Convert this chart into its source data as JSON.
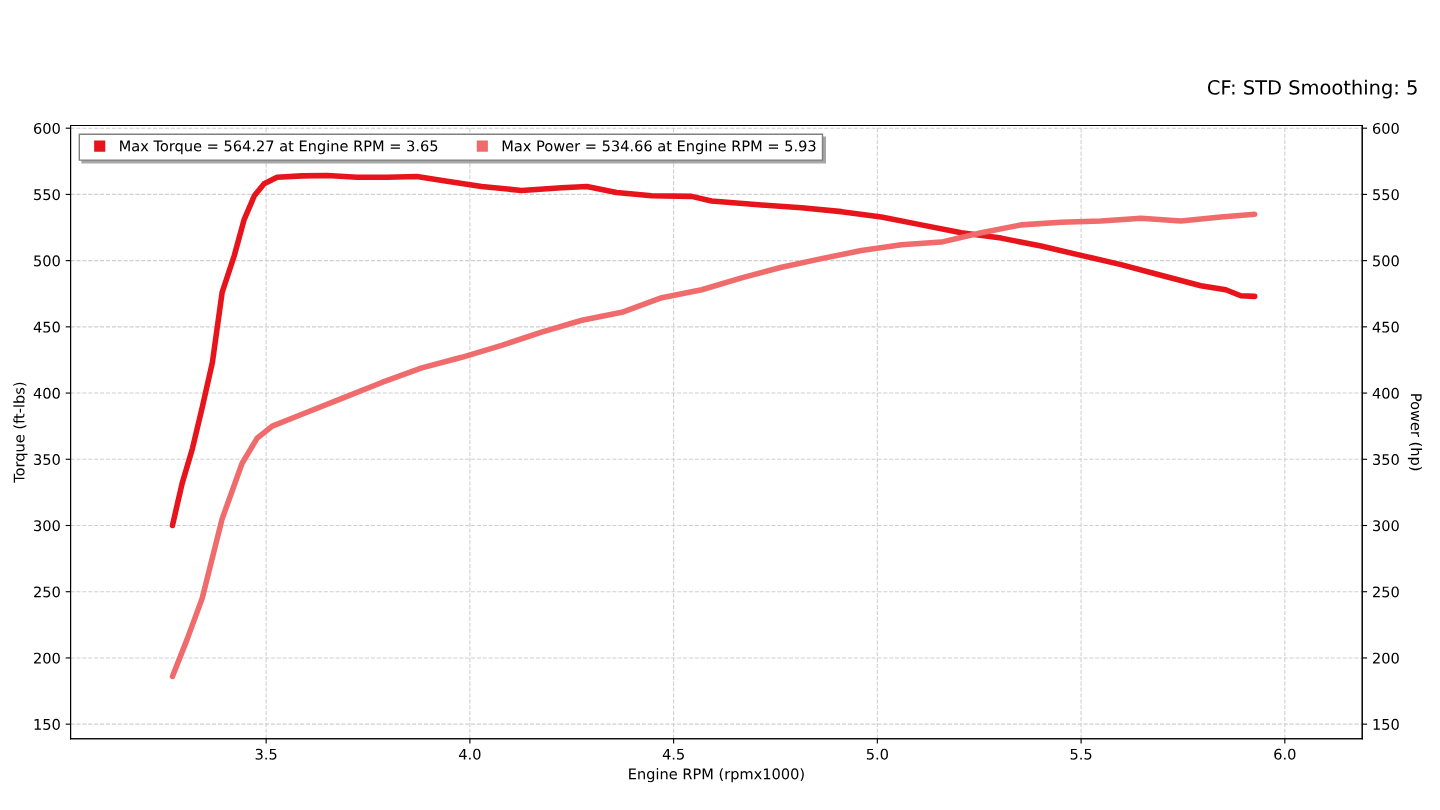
{
  "chart_data": {
    "type": "line",
    "xlabel": "Engine RPM (rpmx1000)",
    "ylabel": "Torque (ft-lbs)",
    "y2label": "Power (hp)",
    "annotations": [
      "CF: STD Smoothing: 5"
    ],
    "xlim": [
      3.02,
      6.19
    ],
    "xticks": [
      {
        "value": 3.5,
        "label": "3.5"
      },
      {
        "value": 4.0,
        "label": "4.0"
      },
      {
        "value": 4.5,
        "label": "4.5"
      },
      {
        "value": 5.0,
        "label": "5.0"
      },
      {
        "value": 5.5,
        "label": "5.5"
      },
      {
        "value": 6.0,
        "label": "6.0"
      }
    ],
    "ylim": [
      139,
      602
    ],
    "yticks": [
      150,
      200,
      250,
      300,
      350,
      400,
      450,
      500,
      550,
      600
    ],
    "y2lim": [
      139,
      602
    ],
    "y2ticks": [
      150,
      200,
      250,
      300,
      350,
      400,
      450,
      500,
      550,
      600
    ],
    "grid": true,
    "legend": "top left",
    "line_style": "solid",
    "marker": "none",
    "series": [
      {
        "name": "Max Torque = 564.27 at Engine RPM = 3.65",
        "color": "#e8141b",
        "x": [
          3.27,
          3.294,
          3.319,
          3.343,
          3.368,
          3.392,
          3.422,
          3.446,
          3.471,
          3.495,
          3.527,
          3.588,
          3.65,
          3.723,
          3.797,
          3.87,
          3.944,
          4.029,
          4.127,
          4.225,
          4.287,
          4.36,
          4.446,
          4.544,
          4.593,
          4.716,
          4.814,
          4.912,
          5.01,
          5.108,
          5.206,
          5.304,
          5.402,
          5.5,
          5.598,
          5.696,
          5.794,
          5.855,
          5.892,
          5.926
        ],
        "values": [
          300,
          332,
          358,
          389,
          423,
          476,
          504,
          531,
          549,
          558,
          563,
          564,
          564.3,
          563,
          563,
          563.6,
          560,
          556,
          553,
          555,
          556,
          551.5,
          549,
          548.5,
          545,
          542,
          540,
          537,
          533,
          527,
          521,
          517,
          511,
          504,
          497,
          489,
          481,
          478,
          473.5,
          473
        ]
      },
      {
        "name": "Max Power = 534.66 at Engine RPM = 5.93",
        "color": "#f06b6b",
        "x": [
          3.27,
          3.306,
          3.343,
          3.392,
          3.441,
          3.478,
          3.515,
          3.588,
          3.686,
          3.784,
          3.882,
          3.98,
          4.078,
          4.176,
          4.275,
          4.373,
          4.471,
          4.569,
          4.667,
          4.765,
          4.863,
          4.961,
          5.059,
          5.157,
          5.255,
          5.353,
          5.451,
          5.549,
          5.647,
          5.745,
          5.843,
          5.926
        ],
        "values": [
          186,
          214,
          245,
          305,
          347,
          366,
          375,
          384,
          396,
          408,
          419,
          427,
          436,
          446,
          455,
          461,
          472,
          478,
          487,
          495,
          501.5,
          507.6,
          512,
          514,
          521,
          527,
          529,
          530,
          532,
          530,
          533,
          535
        ]
      }
    ]
  }
}
